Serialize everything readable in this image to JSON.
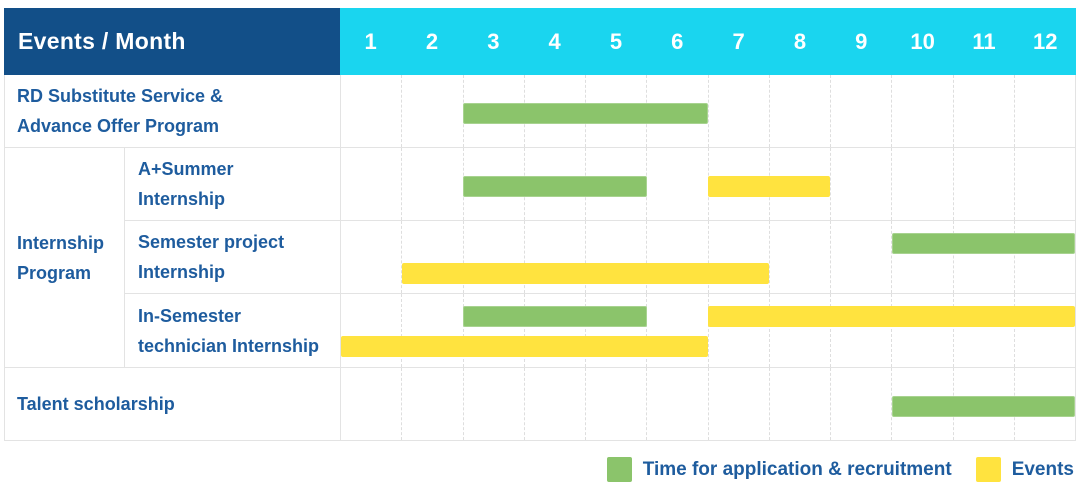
{
  "header": {
    "title": "Events / Month",
    "months": [
      "1",
      "2",
      "3",
      "4",
      "5",
      "6",
      "7",
      "8",
      "9",
      "10",
      "11",
      "12"
    ]
  },
  "chart_data": {
    "type": "table",
    "title": "Events / Month",
    "xlabel": "Month",
    "x_ticks": [
      1,
      2,
      3,
      4,
      5,
      6,
      7,
      8,
      9,
      10,
      11,
      12
    ],
    "x_range": [
      1,
      12
    ],
    "grid": "dashed-vertical",
    "legend_position": "bottom-right",
    "rows": [
      {
        "type": "simple",
        "label_lines": [
          "RD Substitute Service &",
          "Advance Offer Program"
        ],
        "bars": [
          {
            "kind": "recruitment",
            "start_month": 3,
            "end_month": 6,
            "lane": "single"
          }
        ]
      },
      {
        "type": "group",
        "group_label_lines": [
          "Internship",
          "Program"
        ],
        "children": [
          {
            "label_lines": [
              "A+Summer",
              "Internship"
            ],
            "bars": [
              {
                "kind": "recruitment",
                "start_month": 3,
                "end_month": 5,
                "lane": "single"
              },
              {
                "kind": "event",
                "start_month": 7,
                "end_month": 8,
                "lane": "single"
              }
            ]
          },
          {
            "label_lines": [
              "Semester project",
              "Internship"
            ],
            "bars": [
              {
                "kind": "recruitment",
                "start_month": 10,
                "end_month": 12,
                "lane": "top"
              },
              {
                "kind": "event",
                "start_month": 2,
                "end_month": 7,
                "lane": "bottom"
              }
            ]
          },
          {
            "label_lines": [
              "In-Semester",
              "technician Internship"
            ],
            "bars": [
              {
                "kind": "recruitment",
                "start_month": 3,
                "end_month": 5,
                "lane": "top"
              },
              {
                "kind": "event",
                "start_month": 7,
                "end_month": 12,
                "lane": "top"
              },
              {
                "kind": "event",
                "start_month": 1,
                "end_month": 6,
                "lane": "bottom"
              }
            ]
          }
        ]
      },
      {
        "type": "simple",
        "label_lines": [
          "Talent scholarship"
        ],
        "bars": [
          {
            "kind": "recruitment",
            "start_month": 10,
            "end_month": 12,
            "lane": "single"
          }
        ]
      }
    ]
  },
  "legend": [
    {
      "key": "recruitment",
      "label": "Time for application & recruitment"
    },
    {
      "key": "event",
      "label": "Events"
    }
  ],
  "colors": {
    "header_bg": "#124F88",
    "months_bg": "#1AD5EF",
    "recruitment": "#8BC46B",
    "event": "#FFE33F",
    "label_text": "#1E5C9E",
    "header_text": "#FFFFFF",
    "grid_line": "#E3E3E3"
  }
}
